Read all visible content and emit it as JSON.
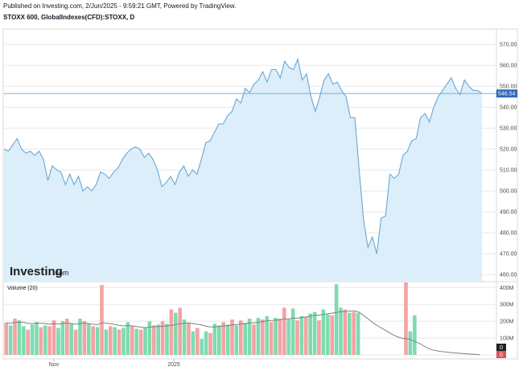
{
  "header": {
    "published": "Published on Investing.com, 2/Jun/2025 - 9:59:21 GMT, Powered by TradingView.",
    "symbol": "STOXX 600, GlobalIndexes(CFD):STOXX, D"
  },
  "watermark": {
    "brand": "Investing",
    "suffix": ".com"
  },
  "colors": {
    "line": "#6aa7d6",
    "area": "#dbeef9",
    "up": "#7ddbb0",
    "down": "#f4a3a3",
    "grid": "#e8e8e8",
    "last": "#2e6ab5"
  },
  "chart_data": [
    {
      "type": "area",
      "title": "STOXX 600, GlobalIndexes(CFD):STOXX, D",
      "ylim": [
        457,
        577
      ],
      "y_ticks": [
        "570.00",
        "560.00",
        "550.00",
        "540.00",
        "530.00",
        "520.00",
        "510.00",
        "500.00",
        "490.00",
        "480.00",
        "470.00",
        "460.00"
      ],
      "x_ticks": [
        "Nov",
        "2025"
      ],
      "last_value": "546.54",
      "values": [
        520,
        519,
        522,
        525,
        520,
        518,
        519,
        517,
        519,
        515,
        505,
        512,
        510,
        509,
        503,
        508,
        503,
        507,
        500,
        502,
        500,
        503,
        509,
        508,
        506,
        509,
        511,
        515,
        518,
        520,
        521,
        520,
        516,
        518,
        515,
        510,
        502,
        504,
        507,
        503,
        509,
        512,
        507,
        510,
        508,
        515,
        523,
        524,
        528,
        532,
        532,
        536,
        538,
        544,
        542,
        549,
        547,
        551,
        553,
        557,
        552,
        558,
        558,
        554,
        562,
        559,
        558,
        563,
        553,
        556,
        545,
        538,
        545,
        553,
        556,
        551,
        552,
        548,
        545,
        535,
        535,
        510,
        486,
        473,
        478,
        470,
        487,
        488,
        508,
        506,
        508,
        517,
        519,
        524,
        525,
        535,
        537,
        533,
        540,
        545,
        548,
        551,
        554,
        549,
        546,
        553,
        550,
        548,
        548,
        546.54
      ],
      "volume_title": "Volume (20)",
      "volume_y_ticks": [
        "400M",
        "300M",
        "200M",
        "100M",
        "0"
      ],
      "volume_ylim": [
        0,
        430
      ],
      "volumes": [
        190,
        175,
        215,
        205,
        170,
        150,
        180,
        195,
        165,
        175,
        170,
        205,
        160,
        200,
        215,
        185,
        150,
        215,
        200,
        185,
        170,
        165,
        415,
        150,
        170,
        165,
        150,
        160,
        195,
        170,
        155,
        150,
        165,
        200,
        175,
        180,
        200,
        185,
        270,
        250,
        280,
        210,
        190,
        140,
        160,
        95,
        140,
        130,
        185,
        175,
        195,
        180,
        210,
        175,
        205,
        190,
        215,
        180,
        220,
        210,
        230,
        195,
        220,
        215,
        280,
        210,
        275,
        205,
        230,
        225,
        245,
        255,
        205,
        270,
        240,
        235,
        420,
        280,
        270,
        250,
        255,
        250,
        0,
        0,
        0,
        0,
        0,
        0,
        0,
        0,
        0,
        0,
        430,
        140,
        235,
        0,
        0,
        0,
        0,
        0,
        0,
        0,
        0,
        0,
        0,
        0,
        0,
        0,
        0,
        0
      ],
      "volume_colors": [
        "d",
        "u",
        "d",
        "u",
        "u",
        "d",
        "u",
        "u",
        "d",
        "u",
        "d",
        "d",
        "u",
        "u",
        "d",
        "u",
        "d",
        "u",
        "d",
        "u",
        "d",
        "u",
        "d",
        "u",
        "d",
        "u",
        "d",
        "u",
        "u",
        "d",
        "u",
        "d",
        "u",
        "u",
        "d",
        "u",
        "d",
        "u",
        "d",
        "u",
        "d",
        "u",
        "d",
        "u",
        "d",
        "u",
        "u",
        "d",
        "u",
        "u",
        "d",
        "u",
        "d",
        "u",
        "d",
        "u",
        "u",
        "d",
        "u",
        "d",
        "u",
        "d",
        "u",
        "d",
        "d",
        "u",
        "u",
        "d",
        "u",
        "d",
        "u",
        "u",
        "d",
        "u",
        "u",
        "d",
        "u",
        "u",
        "d",
        "u",
        "d",
        "u",
        "u",
        "u",
        "u",
        "u",
        "u",
        "u",
        "u",
        "u",
        "u",
        "u",
        "d",
        "u",
        "u",
        "u",
        "u",
        "u",
        "u",
        "u",
        "u",
        "u",
        "u",
        "u",
        "u",
        "u",
        "u",
        "u",
        "u",
        "u"
      ],
      "volume_ma": [
        190,
        188,
        192,
        195,
        193,
        188,
        186,
        189,
        188,
        186,
        183,
        186,
        184,
        186,
        190,
        187,
        182,
        186,
        190,
        186,
        182,
        179,
        190,
        188,
        186,
        180,
        176,
        172,
        174,
        172,
        168,
        165,
        162,
        165,
        167,
        168,
        170,
        172,
        176,
        180,
        186,
        188,
        190,
        186,
        182,
        178,
        170,
        166,
        166,
        168,
        172,
        174,
        178,
        180,
        184,
        186,
        190,
        190,
        194,
        198,
        202,
        204,
        206,
        208,
        214,
        214,
        218,
        218,
        222,
        225,
        230,
        236,
        236,
        240,
        244,
        248,
        252,
        256,
        258,
        260,
        262,
        256,
        240,
        220,
        200,
        180,
        165,
        150,
        135,
        120,
        108,
        100,
        96,
        92,
        80,
        70,
        55,
        40,
        30,
        25,
        20,
        18,
        15,
        12,
        10,
        8,
        6,
        5,
        3,
        2
      ],
      "volume_last": "0"
    }
  ]
}
